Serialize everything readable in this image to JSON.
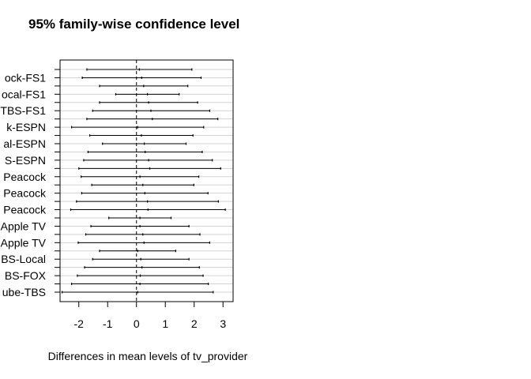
{
  "chart_data": {
    "type": "interval",
    "title": "95% family-wise confidence level",
    "xlabel": "Differences in mean levels of tv_provider",
    "ylabel": "",
    "xlim": [
      -2.65,
      3.35
    ],
    "xticks": [
      -2,
      -1,
      0,
      1,
      2,
      3
    ],
    "reference_line": 0,
    "grid": true,
    "y_tick_labels": [
      "ock-FS1",
      "ocal-FS1",
      "TBS-FS1",
      "k-ESPN",
      "al-ESPN",
      "S-ESPN",
      "Peacock",
      "Peacock",
      "Peacock",
      "Apple TV",
      "Apple TV",
      "BS-Local",
      "BS-FOX",
      "ube-TBS"
    ],
    "intervals": [
      {
        "lwr": -1.72,
        "estimate": 0.1,
        "upr": 1.92
      },
      {
        "lwr": -1.88,
        "estimate": 0.18,
        "upr": 2.24
      },
      {
        "lwr": -1.28,
        "estimate": 0.25,
        "upr": 1.78
      },
      {
        "lwr": -0.72,
        "estimate": 0.38,
        "upr": 1.48
      },
      {
        "lwr": -1.28,
        "estimate": 0.42,
        "upr": 2.12
      },
      {
        "lwr": -1.52,
        "estimate": 0.5,
        "upr": 2.54
      },
      {
        "lwr": -1.72,
        "estimate": 0.55,
        "upr": 2.82
      },
      {
        "lwr": -2.25,
        "estimate": 0.04,
        "upr": 2.33
      },
      {
        "lwr": -1.62,
        "estimate": 0.17,
        "upr": 1.96
      },
      {
        "lwr": -1.18,
        "estimate": 0.27,
        "upr": 1.72
      },
      {
        "lwr": -1.68,
        "estimate": 0.3,
        "upr": 2.28
      },
      {
        "lwr": -1.83,
        "estimate": 0.42,
        "upr": 2.63
      },
      {
        "lwr": -2.0,
        "estimate": 0.46,
        "upr": 2.92
      },
      {
        "lwr": -1.92,
        "estimate": 0.12,
        "upr": 2.16
      },
      {
        "lwr": -1.55,
        "estimate": 0.22,
        "upr": 1.99
      },
      {
        "lwr": -1.9,
        "estimate": 0.29,
        "upr": 2.48
      },
      {
        "lwr": -2.08,
        "estimate": 0.38,
        "upr": 2.84
      },
      {
        "lwr": -2.28,
        "estimate": 0.4,
        "upr": 3.08
      },
      {
        "lwr": -0.96,
        "estimate": 0.12,
        "upr": 1.2
      },
      {
        "lwr": -1.58,
        "estimate": 0.12,
        "upr": 1.82
      },
      {
        "lwr": -1.76,
        "estimate": 0.22,
        "upr": 2.2
      },
      {
        "lwr": -2.02,
        "estimate": 0.26,
        "upr": 2.54
      },
      {
        "lwr": -1.28,
        "estimate": 0.04,
        "upr": 1.36
      },
      {
        "lwr": -1.52,
        "estimate": 0.15,
        "upr": 1.82
      },
      {
        "lwr": -1.8,
        "estimate": 0.19,
        "upr": 2.18
      },
      {
        "lwr": -2.05,
        "estimate": 0.13,
        "upr": 2.31
      },
      {
        "lwr": -2.25,
        "estimate": 0.12,
        "upr": 2.49
      },
      {
        "lwr": -2.58,
        "estimate": 0.04,
        "upr": 2.66
      }
    ]
  }
}
